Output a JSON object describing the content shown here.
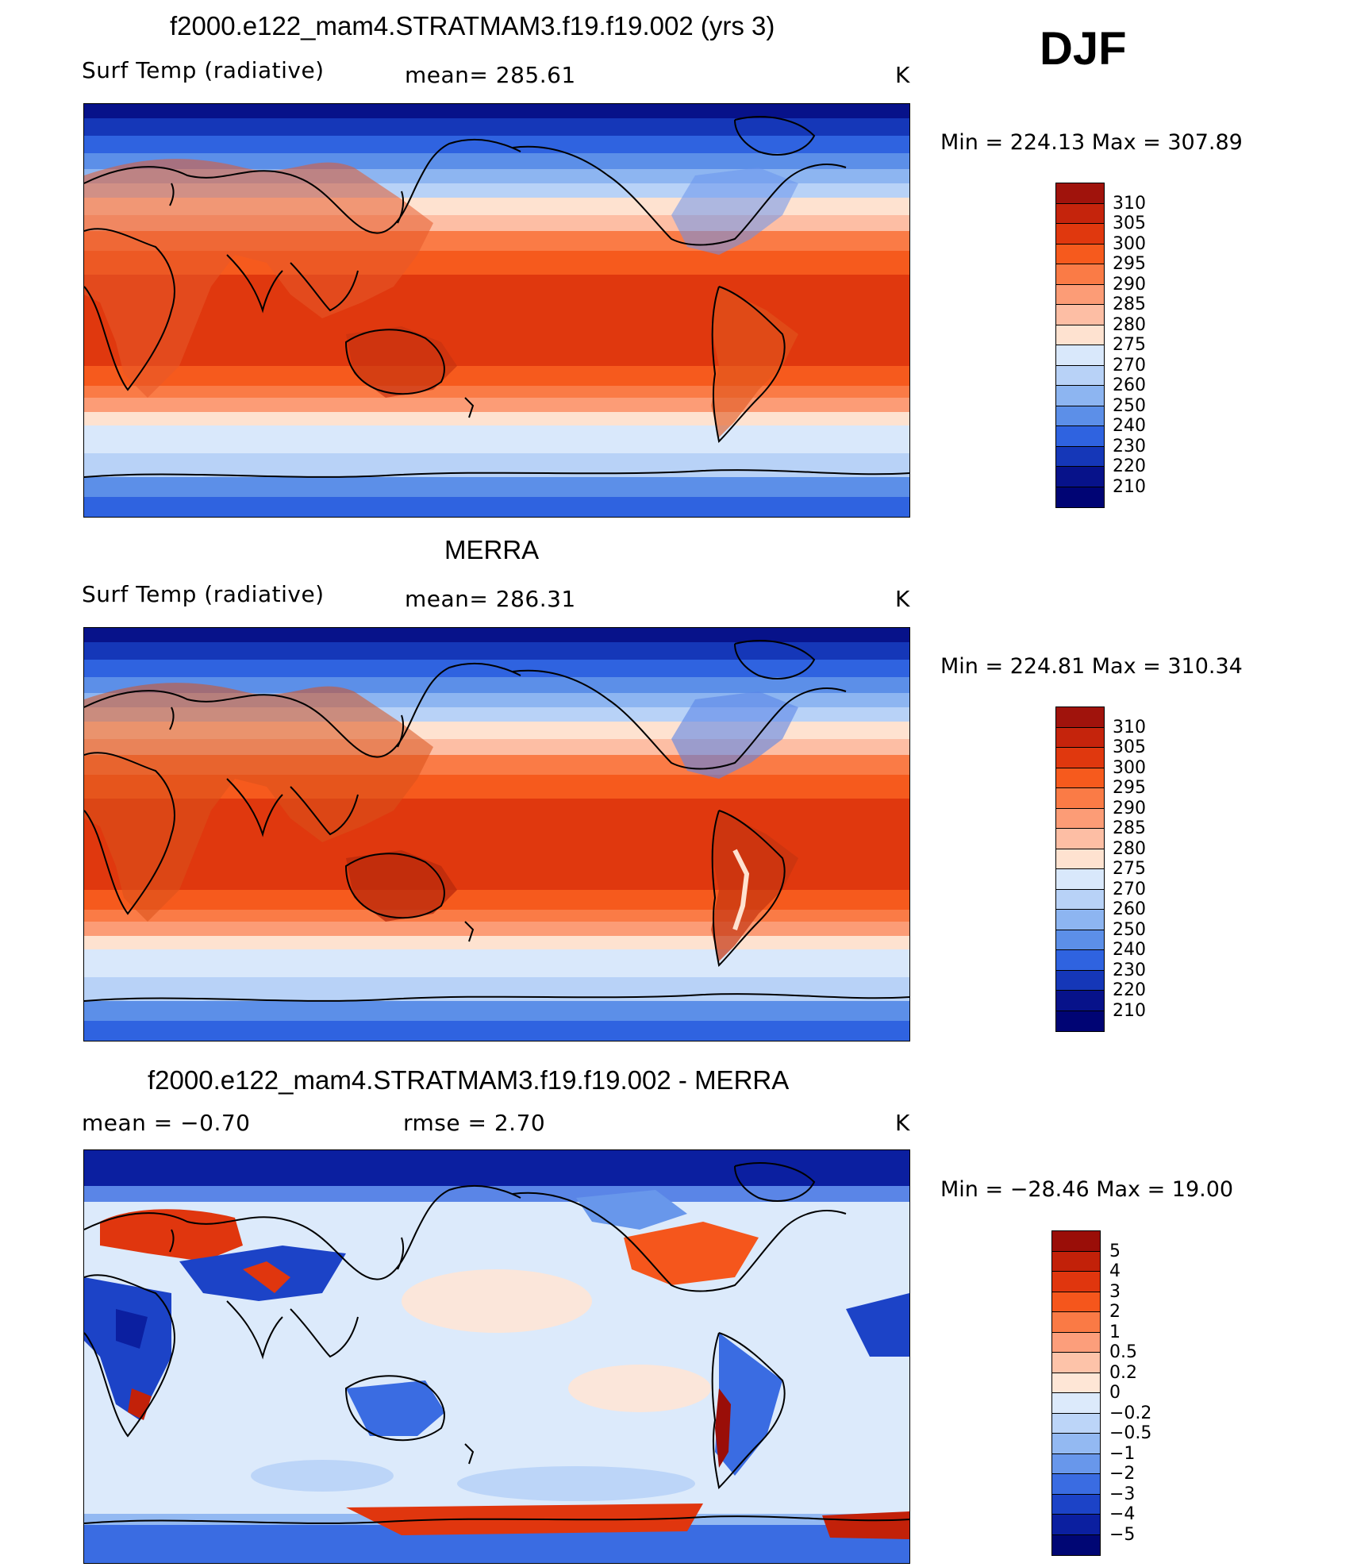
{
  "season": "DJF",
  "panels": [
    {
      "id": "model",
      "title": "f2000.e122_mam4.STRATMAM3.f19.f19.002 (yrs 3)",
      "left_label": "Surf Temp (radiative)",
      "center_label": "mean= 285.61",
      "units": "K",
      "minmax": "Min = 224.13 Max = 307.89"
    },
    {
      "id": "obs",
      "title": "MERRA",
      "left_label": "Surf Temp (radiative)",
      "center_label": "mean= 286.31",
      "units": "K",
      "minmax": "Min = 224.81 Max = 310.34"
    },
    {
      "id": "diff",
      "title": "f2000.e122_mam4.STRATMAM3.f19.f19.002 - MERRA",
      "left_label": "mean =   −0.70",
      "center_label": "rmse =    2.70",
      "units": "K",
      "minmax": "Min = −28.46 Max =  19.00"
    }
  ],
  "colorbars": {
    "temp": {
      "levels": [
        "310",
        "305",
        "300",
        "295",
        "290",
        "285",
        "280",
        "275",
        "270",
        "260",
        "250",
        "240",
        "230",
        "220",
        "210"
      ],
      "colors": [
        "#a0130c",
        "#c5240c",
        "#e0380e",
        "#f65a1d",
        "#fa7b46",
        "#fc9c76",
        "#fdbea4",
        "#fee2d0",
        "#d9e8fb",
        "#b8d2f7",
        "#8db5f1",
        "#5c8fe8",
        "#2f63e0",
        "#1537b8",
        "#07128a",
        "#000474"
      ]
    },
    "diff": {
      "levels": [
        "5",
        "4",
        "3",
        "2",
        "1",
        "0.5",
        "0.2",
        "0",
        "−0.2",
        "−0.5",
        "−1",
        "−2",
        "−3",
        "−4",
        "−5"
      ],
      "colors": [
        "#9a0e08",
        "#c22109",
        "#e0360e",
        "#f5561c",
        "#fa7a45",
        "#fc9e7b",
        "#fdc3a9",
        "#fee6d6",
        "#dceafb",
        "#bcd5f8",
        "#93b9f2",
        "#6897eb",
        "#3a6ce2",
        "#1c43c7",
        "#0b1fa0",
        "#000674"
      ]
    }
  }
}
